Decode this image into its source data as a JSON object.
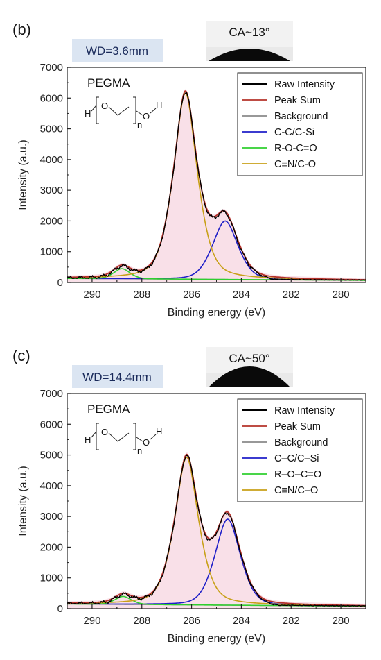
{
  "colors": {
    "raw": "#000000",
    "peak_sum": "#b5322a",
    "background": "#8a8a8a",
    "cc_csi": "#1f1fc8",
    "r_o_c_o": "#2fcf2f",
    "cn_co": "#c8a018",
    "wd_box": "#dbe5f2",
    "pink_shade": "#f4c6d6"
  },
  "chart_data": [
    {
      "type": "line",
      "panel_label": "(b)",
      "wd_label": "WD=3.6mm",
      "ca_label": "CA~13°",
      "sample_label": "PEGMA",
      "structure": {
        "h_left": "H",
        "o_left": "O",
        "subscript": "n",
        "o_right": "O",
        "h_right": "H"
      },
      "xlabel": "Binding energy (eV)",
      "ylabel": "Intensity (a.u.)",
      "xlim": [
        291,
        279
      ],
      "ylim": [
        0,
        7000
      ],
      "xticks": [
        290,
        288,
        286,
        284,
        282,
        280
      ],
      "yticks": [
        0,
        1000,
        2000,
        3000,
        4000,
        5000,
        6000,
        7000
      ],
      "legend": [
        "Raw Intensity",
        "Peak Sum",
        "Background",
        "C-C/C-Si",
        "R-O-C=O",
        "C≡N/C-O"
      ],
      "background_line": {
        "x": [
          291,
          279
        ],
        "y": [
          130,
          70
        ]
      },
      "components": [
        {
          "name": "C-C/C-Si",
          "center": 284.65,
          "height": 1900,
          "width": 0.55,
          "lorentz": 0.35
        },
        {
          "name": "R-O-C=O",
          "center": 288.8,
          "height": 330,
          "width": 0.35,
          "lorentz": 0.3
        },
        {
          "name": "C≡N/C-O",
          "center": 286.25,
          "height": 6050,
          "width": 0.55,
          "lorentz": 0.55
        }
      ],
      "peak_values": {
        "main_peak_x": 286.25,
        "main_peak_y": 6350,
        "shoulder_x": 284.65,
        "shoulder_y": 2500,
        "small_peak_x": 288.8,
        "small_peak_y": 680
      }
    },
    {
      "type": "line",
      "panel_label": "(c)",
      "wd_label": "WD=14.4mm",
      "ca_label": "CA~50°",
      "sample_label": "PEGMA",
      "structure": {
        "h_left": "H",
        "o_left": "O",
        "subscript": "n",
        "o_right": "O",
        "h_right": "H"
      },
      "xlabel": "Binding energy (eV)",
      "ylabel": "Intensity (a.u.)",
      "xlim": [
        291,
        279
      ],
      "ylim": [
        0,
        7000
      ],
      "xticks": [
        290,
        288,
        286,
        284,
        282,
        280
      ],
      "yticks": [
        0,
        1000,
        2000,
        3000,
        4000,
        5000,
        6000,
        7000
      ],
      "legend": [
        "Raw Intensity",
        "Peak Sum",
        "Background",
        "C–C/C–Si",
        "R–O–C=O",
        "C≡N/C–O"
      ],
      "background_line": {
        "x": [
          291,
          279
        ],
        "y": [
          150,
          80
        ]
      },
      "components": [
        {
          "name": "C–C/C–Si",
          "center": 284.55,
          "height": 2800,
          "width": 0.55,
          "lorentz": 0.35
        },
        {
          "name": "R–O–C=O",
          "center": 288.75,
          "height": 260,
          "width": 0.35,
          "lorentz": 0.3
        },
        {
          "name": "C≡N/C–O",
          "center": 286.2,
          "height": 4800,
          "width": 0.55,
          "lorentz": 0.55
        }
      ],
      "peak_values": {
        "main_peak_x": 286.2,
        "main_peak_y": 5250,
        "shoulder_x": 284.5,
        "shoulder_y": 3400,
        "small_peak_x": 288.8,
        "small_peak_y": 620
      }
    }
  ]
}
